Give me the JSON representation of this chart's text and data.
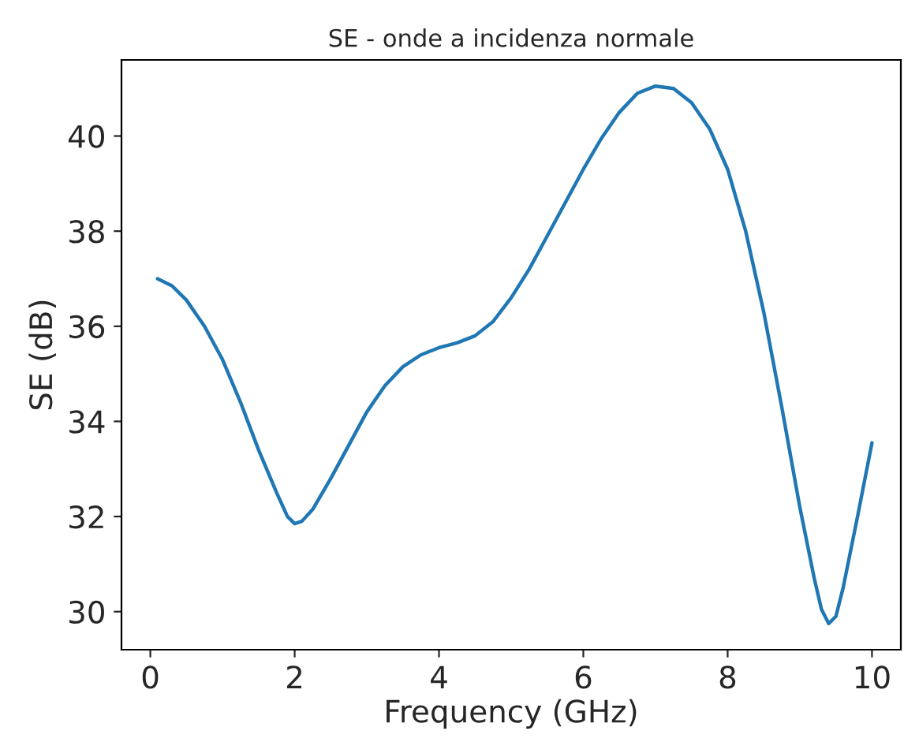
{
  "chart_data": {
    "type": "line",
    "title": "SE - onde a incidenza normale",
    "xlabel": "Frequency (GHz)",
    "ylabel": "SE (dB)",
    "x": [
      0.1,
      0.3,
      0.5,
      0.75,
      1.0,
      1.25,
      1.5,
      1.75,
      1.9,
      2.0,
      2.1,
      2.25,
      2.5,
      2.75,
      3.0,
      3.25,
      3.5,
      3.75,
      4.0,
      4.25,
      4.5,
      4.75,
      5.0,
      5.25,
      5.5,
      5.75,
      6.0,
      6.25,
      6.5,
      6.75,
      7.0,
      7.25,
      7.5,
      7.75,
      8.0,
      8.25,
      8.5,
      8.75,
      9.0,
      9.2,
      9.3,
      9.4,
      9.5,
      9.6,
      9.8,
      10.0
    ],
    "series": [
      {
        "color": "#1f77b4",
        "values": [
          37.0,
          36.85,
          36.55,
          36.0,
          35.3,
          34.4,
          33.4,
          32.5,
          32.0,
          31.85,
          31.9,
          32.15,
          32.8,
          33.5,
          34.2,
          34.75,
          35.15,
          35.4,
          35.55,
          35.65,
          35.8,
          36.1,
          36.6,
          37.2,
          37.9,
          38.6,
          39.3,
          39.95,
          40.5,
          40.9,
          41.05,
          41.0,
          40.7,
          40.15,
          39.3,
          38.0,
          36.3,
          34.3,
          32.2,
          30.7,
          30.05,
          29.75,
          29.9,
          30.5,
          32.0,
          33.55
        ]
      }
    ],
    "xlim": [
      -0.4,
      10.4
    ],
    "ylim": [
      29.2,
      41.6
    ],
    "xticks": [
      0,
      2,
      4,
      6,
      8,
      10
    ],
    "yticks": [
      30,
      32,
      34,
      36,
      38,
      40
    ],
    "grid": false,
    "marker": "none",
    "line_style": "solid"
  }
}
